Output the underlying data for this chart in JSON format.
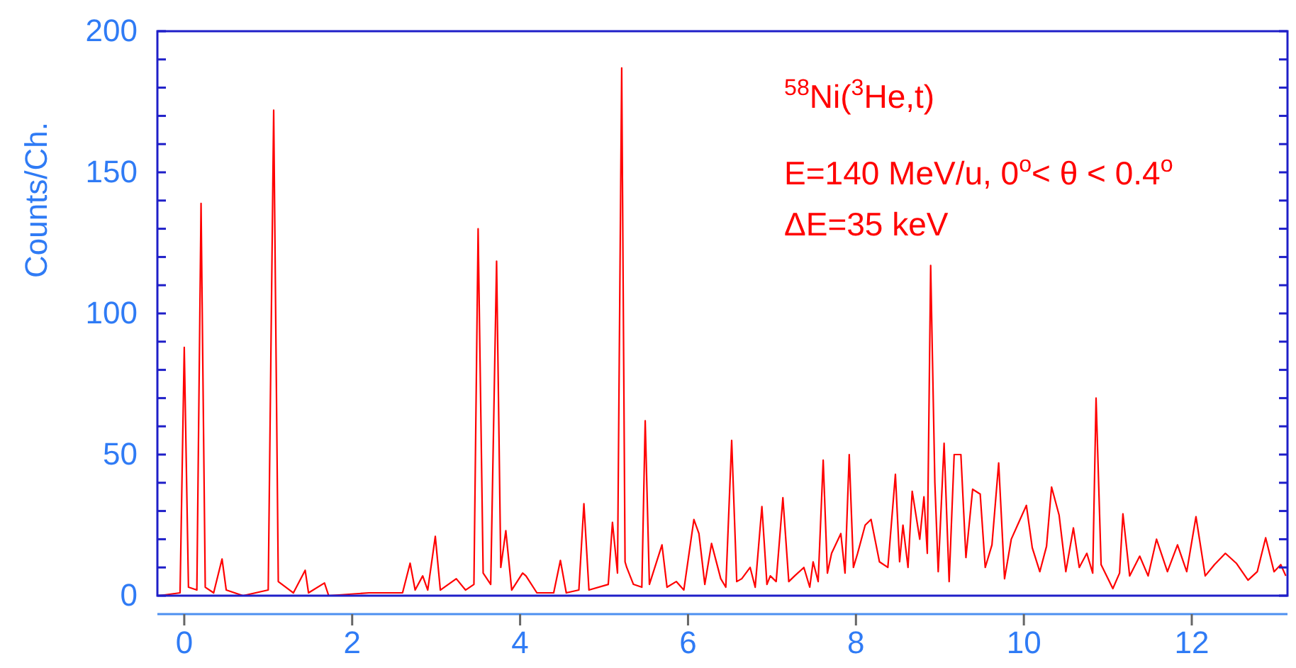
{
  "chart_data": {
    "type": "line",
    "ylabel": "Counts/Ch.",
    "annotations": [
      "$^{58}$Ni($^{3}$He,t)",
      "E=140 MeV/u, 0$^{o}$< θ < 0.4$^{o}$",
      "ΔE=35  keV"
    ],
    "xlim": [
      -0.32,
      13.14
    ],
    "xticks": [
      0,
      2,
      4,
      6,
      8,
      10,
      12
    ],
    "ylim": [
      0,
      200
    ],
    "yticks": [
      0,
      {
        "value": 10,
        "label": null
      },
      {
        "value": 20,
        "label": null
      },
      {
        "value": 30,
        "label": null
      },
      {
        "value": 40,
        "label": null
      },
      50,
      {
        "value": 60,
        "label": null
      },
      {
        "value": 70,
        "label": null
      },
      {
        "value": 80,
        "label": null
      },
      {
        "value": 90,
        "label": null
      },
      100,
      {
        "value": 110,
        "label": null
      },
      {
        "value": 120,
        "label": null
      },
      {
        "value": 130,
        "label": null
      },
      {
        "value": 140,
        "label": null
      },
      150,
      {
        "value": 160,
        "label": null
      },
      {
        "value": 170,
        "label": null
      },
      {
        "value": 180,
        "label": null
      },
      {
        "value": 190,
        "label": null
      },
      200
    ],
    "grid": false,
    "marker": "none",
    "line_style": "solid",
    "series": [
      {
        "color": "#ff0000",
        "x": [
          -0.3,
          -0.05,
          0,
          0.05,
          0.15,
          0.2,
          0.25,
          0.35,
          0.45,
          0.5,
          0.7,
          1.0,
          1.065,
          1.12,
          1.3,
          1.44,
          1.48,
          1.67,
          1.72,
          2.2,
          2.6,
          2.69,
          2.75,
          2.84,
          2.9,
          2.99,
          3.05,
          3.24,
          3.35,
          3.45,
          3.5,
          3.56,
          3.65,
          3.72,
          3.77,
          3.83,
          3.9,
          4.03,
          4.07,
          4.2,
          4.4,
          4.48,
          4.55,
          4.7,
          4.76,
          4.82,
          5.05,
          5.1,
          5.16,
          5.21,
          5.25,
          5.27,
          5.35,
          5.45,
          5.49,
          5.54,
          5.69,
          5.75,
          5.86,
          5.95,
          6.07,
          6.13,
          6.2,
          6.28,
          6.39,
          6.45,
          6.52,
          6.58,
          6.64,
          6.74,
          6.8,
          6.88,
          6.94,
          6.98,
          7.05,
          7.13,
          7.2,
          7.27,
          7.38,
          7.45,
          7.49,
          7.55,
          7.61,
          7.66,
          7.71,
          7.82,
          7.87,
          7.92,
          7.97,
          8.02,
          8.11,
          8.18,
          8.28,
          8.38,
          8.47,
          8.52,
          8.56,
          8.62,
          8.67,
          8.76,
          8.81,
          8.85,
          8.89,
          8.94,
          8.98,
          9.05,
          9.11,
          9.17,
          9.25,
          9.31,
          9.39,
          9.48,
          9.54,
          9.62,
          9.7,
          9.77,
          9.85,
          9.94,
          10.03,
          10.1,
          10.19,
          10.27,
          10.33,
          10.42,
          10.5,
          10.59,
          10.66,
          10.75,
          10.82,
          10.86,
          10.92,
          11.06,
          11.14,
          11.18,
          11.26,
          11.38,
          11.48,
          11.58,
          11.71,
          11.83,
          11.94,
          12.05,
          12.16,
          12.27,
          12.4,
          12.53,
          12.67,
          12.78,
          12.88,
          12.98,
          13.06,
          13.12
        ],
        "values": [
          0,
          1,
          88,
          3,
          2,
          139,
          3,
          1,
          13,
          2,
          0,
          2,
          172,
          5,
          1,
          9,
          1,
          4.5,
          0,
          1,
          1,
          11.5,
          2,
          7,
          2,
          21,
          2,
          6,
          2,
          4,
          130,
          8,
          4,
          118.5,
          10,
          23,
          2,
          8,
          7,
          1,
          1,
          12.5,
          1,
          2,
          32.6,
          2,
          4,
          26,
          8,
          187,
          12,
          10,
          4,
          3,
          62,
          4,
          18,
          3,
          5,
          2,
          27,
          22,
          4,
          18.5,
          6,
          3,
          55,
          5,
          6,
          10,
          3,
          31.6,
          4,
          7,
          5,
          34.7,
          5,
          7,
          10,
          3,
          12,
          5,
          48,
          8,
          15,
          22,
          8,
          50,
          10,
          15,
          25,
          27,
          12,
          10,
          43,
          12,
          25,
          10,
          37,
          20,
          35,
          15,
          117,
          40,
          8.5,
          54,
          5,
          50,
          50,
          13.5,
          37.7,
          36,
          10,
          18,
          47,
          6,
          20,
          26,
          32,
          17,
          8.5,
          17.5,
          38.5,
          28.5,
          8.5,
          24,
          10,
          15,
          8,
          70,
          11,
          2.5,
          8,
          29,
          7,
          14,
          7,
          20,
          8.5,
          18,
          8.5,
          28,
          7,
          11,
          15,
          11.5,
          5.5,
          8.5,
          20.5,
          8.5,
          11,
          7
        ]
      }
    ]
  }
}
